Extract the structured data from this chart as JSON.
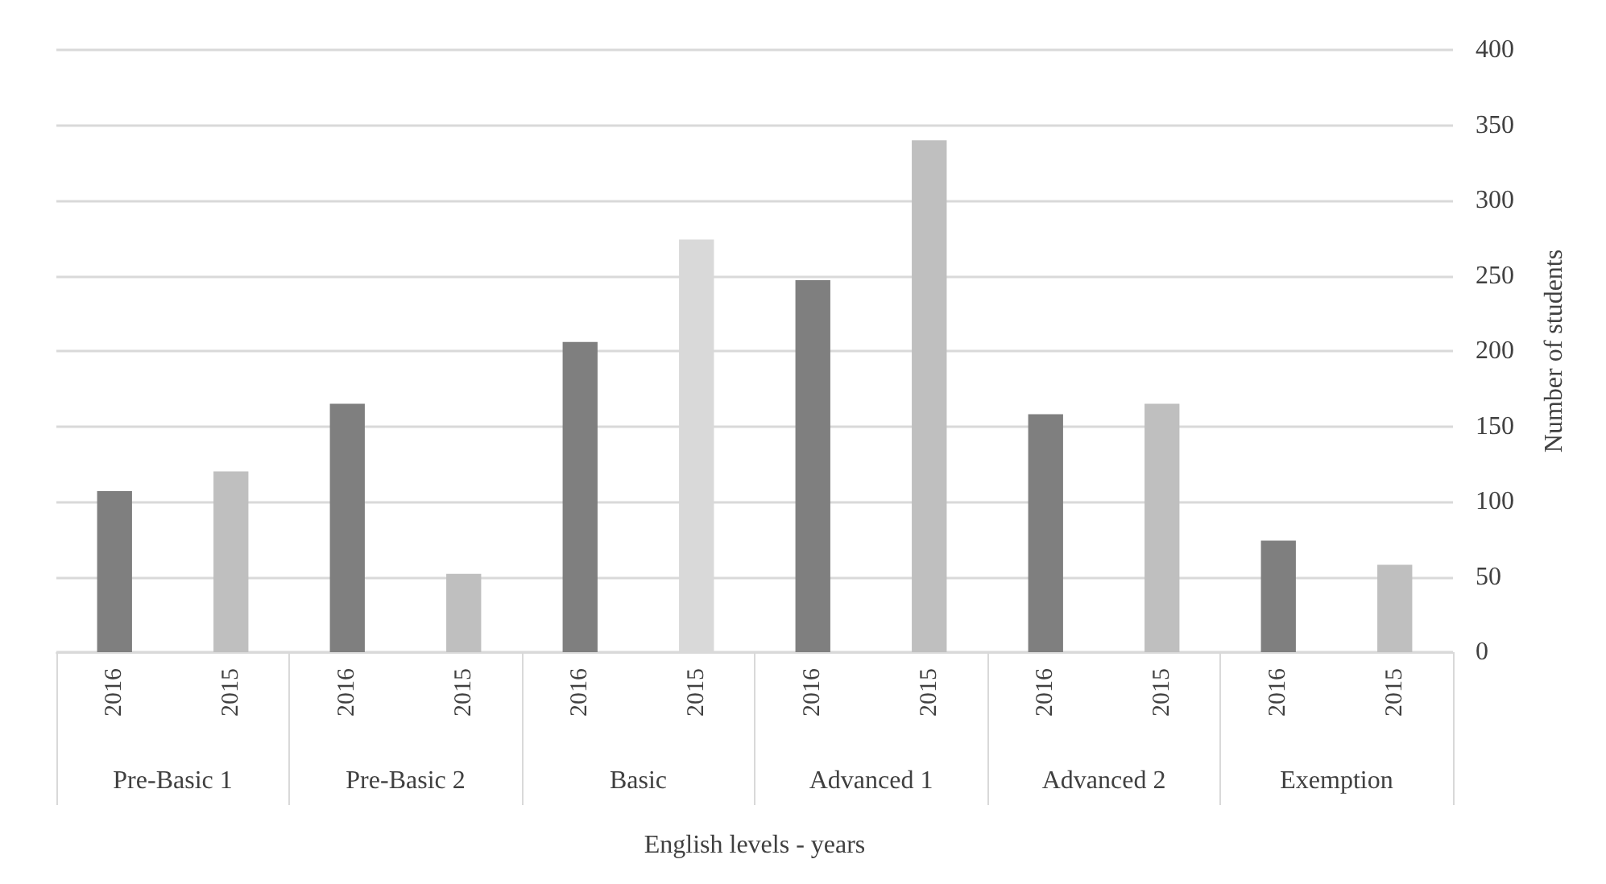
{
  "chart_data": {
    "type": "bar",
    "xlabel": "English levels - years",
    "ylabel": "Number of students",
    "categories": [
      "2016",
      "2015",
      "2016",
      "2015",
      "2016",
      "2015",
      "2016",
      "2015",
      "2016",
      "2015",
      "2016",
      "2015"
    ],
    "annotations": [
      "Pre-Basic 1",
      "Pre-Basic 2",
      "Basic",
      "Advanced 1",
      "Advanced 2",
      "Exemption"
    ],
    "values": [
      107,
      120,
      165,
      52,
      206,
      274,
      247,
      340,
      158,
      165,
      74,
      58
    ],
    "colors": [
      "#7f7f7f",
      "#bfbfbf",
      "#7f7f7f",
      "#bfbfbf",
      "#7f7f7f",
      "#d9d9d9",
      "#7f7f7f",
      "#bfbfbf",
      "#7f7f7f",
      "#bfbfbf",
      "#7f7f7f",
      "#bfbfbf"
    ],
    "ylim": [
      0,
      400
    ],
    "yticks": [
      0,
      50,
      100,
      150,
      200,
      250,
      300,
      350,
      400
    ],
    "grid": "y"
  }
}
